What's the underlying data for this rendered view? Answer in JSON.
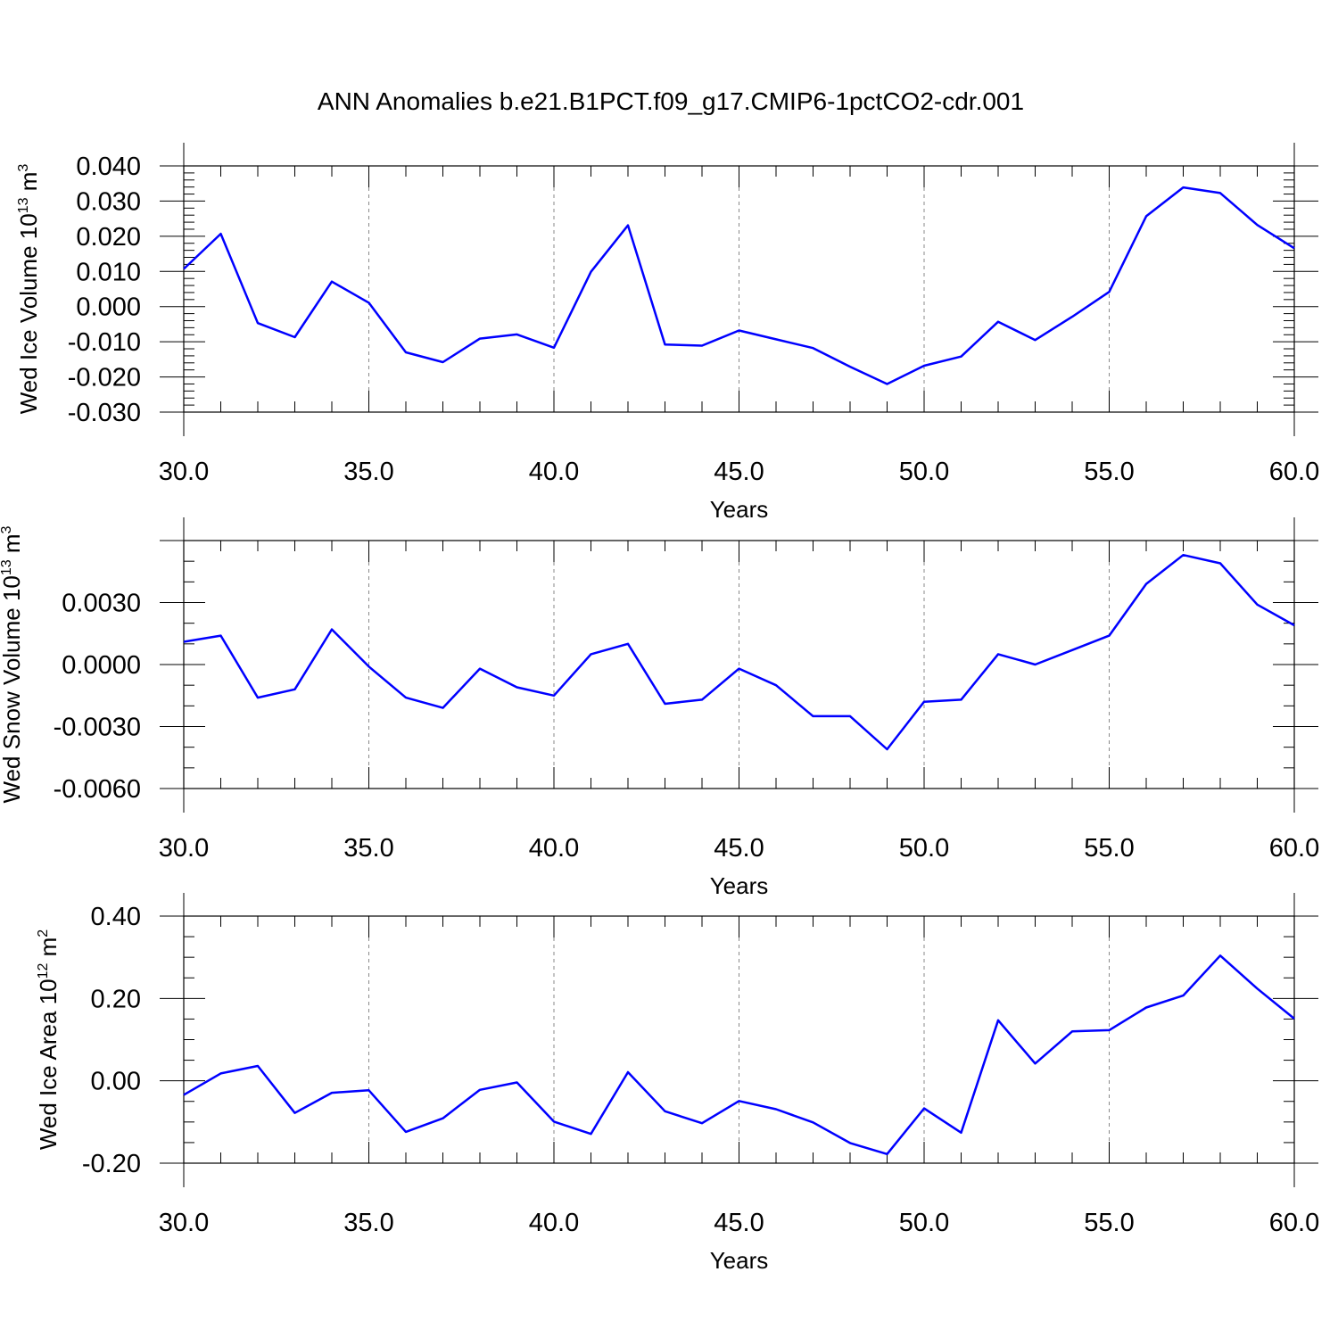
{
  "title": "ANN Anomalies b.e21.B1PCT.f09_g17.CMIP6-1pctCO2-cdr.001",
  "colors": {
    "line": "#0000ff",
    "grid": "#888888",
    "axis": "#000000"
  },
  "chart_data": [
    {
      "type": "line",
      "ylabel": "Wed Ice Volume 10",
      "ylabel_sup": "13",
      "ylabel_unit": "m",
      "ylabel_unit_sup": "3",
      "xlabel": "Years",
      "xlim": [
        30,
        60
      ],
      "ylim": [
        -0.03,
        0.04
      ],
      "x_ticks": [
        "30.0",
        "35.0",
        "40.0",
        "45.0",
        "50.0",
        "55.0",
        "60.0"
      ],
      "y_ticks": [
        {
          "value": 0.04,
          "label": "0.040"
        },
        {
          "value": 0.03,
          "label": "0.030"
        },
        {
          "value": 0.02,
          "label": "0.020"
        },
        {
          "value": 0.01,
          "label": "0.010"
        },
        {
          "value": 0.0,
          "label": "0.000"
        },
        {
          "value": -0.01,
          "label": "-0.010"
        },
        {
          "value": -0.02,
          "label": "-0.020"
        },
        {
          "value": -0.03,
          "label": "-0.030"
        }
      ],
      "x_grid": [
        35,
        40,
        45,
        50,
        55
      ],
      "x": [
        30,
        31,
        32,
        33,
        34,
        35,
        36,
        37,
        38,
        39,
        40,
        41,
        42,
        43,
        44,
        45,
        46,
        47,
        48,
        49,
        50,
        51,
        52,
        53,
        54,
        55,
        56,
        57,
        58,
        59,
        60
      ],
      "values": [
        0.0107,
        0.0207,
        -0.0047,
        -0.0087,
        0.0071,
        0.0011,
        -0.013,
        -0.0158,
        -0.0091,
        -0.0079,
        -0.0117,
        0.0099,
        0.0231,
        -0.0108,
        -0.0111,
        -0.0068,
        -0.0093,
        -0.0118,
        -0.0171,
        -0.022,
        -0.0168,
        -0.0142,
        -0.0043,
        -0.0095,
        -0.0029,
        0.0042,
        0.0257,
        0.0339,
        0.0323,
        0.0232,
        0.0166
      ]
    },
    {
      "type": "line",
      "ylabel": "Wed Snow Volume 10",
      "ylabel_sup": "13",
      "ylabel_unit": "m",
      "ylabel_unit_sup": "3",
      "xlabel": "Years",
      "xlim": [
        30,
        60
      ],
      "ylim": [
        -0.006,
        0.006
      ],
      "x_ticks": [
        "30.0",
        "35.0",
        "40.0",
        "45.0",
        "50.0",
        "55.0",
        "60.0"
      ],
      "y_ticks": [
        {
          "value": 0.003,
          "label": "0.0030"
        },
        {
          "value": 0.0,
          "label": "0.0000"
        },
        {
          "value": -0.003,
          "label": "-0.0030"
        },
        {
          "value": -0.006,
          "label": "-0.0060"
        }
      ],
      "x_grid": [
        35,
        40,
        45,
        50,
        55
      ],
      "x": [
        30,
        31,
        32,
        33,
        34,
        35,
        36,
        37,
        38,
        39,
        40,
        41,
        42,
        43,
        44,
        45,
        46,
        47,
        48,
        49,
        50,
        51,
        52,
        53,
        54,
        55,
        56,
        57,
        58,
        59,
        60
      ],
      "values": [
        0.0011,
        0.0014,
        -0.0016,
        -0.0012,
        0.0017,
        -0.0001,
        -0.0016,
        -0.0021,
        -0.0002,
        -0.0011,
        -0.0015,
        0.0005,
        0.001,
        -0.0019,
        -0.0017,
        -0.0002,
        -0.001,
        -0.0025,
        -0.0025,
        -0.0041,
        -0.0018,
        -0.0017,
        0.0005,
        0.0,
        0.0007,
        0.0014,
        0.0039,
        0.0053,
        0.0049,
        0.0029,
        0.0019
      ]
    },
    {
      "type": "line",
      "ylabel": "Wed Ice Area 10",
      "ylabel_sup": "12",
      "ylabel_unit": "m",
      "ylabel_unit_sup": "2",
      "xlabel": "Years",
      "xlim": [
        30,
        60
      ],
      "ylim": [
        -0.2,
        0.4
      ],
      "x_ticks": [
        "30.0",
        "35.0",
        "40.0",
        "45.0",
        "50.0",
        "55.0",
        "60.0"
      ],
      "y_ticks": [
        {
          "value": 0.4,
          "label": "0.40"
        },
        {
          "value": 0.2,
          "label": "0.20"
        },
        {
          "value": 0.0,
          "label": "0.00"
        },
        {
          "value": -0.2,
          "label": "-0.20"
        }
      ],
      "x_grid": [
        35,
        40,
        45,
        50,
        55
      ],
      "x": [
        30,
        31,
        32,
        33,
        34,
        35,
        36,
        37,
        38,
        39,
        40,
        41,
        42,
        43,
        44,
        45,
        46,
        47,
        48,
        49,
        50,
        51,
        52,
        53,
        54,
        55,
        56,
        57,
        58,
        59,
        60
      ],
      "values": [
        -0.034,
        0.018,
        0.036,
        -0.078,
        -0.029,
        -0.023,
        -0.124,
        -0.091,
        -0.022,
        -0.004,
        -0.099,
        -0.129,
        0.021,
        -0.074,
        -0.103,
        -0.049,
        -0.069,
        -0.101,
        -0.151,
        -0.178,
        -0.067,
        -0.126,
        0.147,
        0.042,
        0.12,
        0.123,
        0.178,
        0.207,
        0.304,
        0.224,
        0.151
      ]
    }
  ]
}
